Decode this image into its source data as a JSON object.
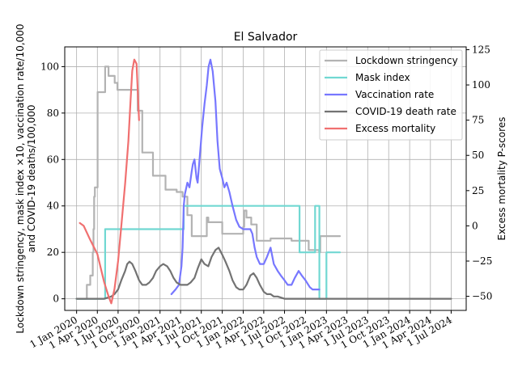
{
  "chart_data": {
    "type": "line",
    "title": "El Salvador",
    "ylabel_left": "Lockdown stringency, mask index ×10, vaccination rate/10,000\nand COVID-19 deaths/100,000",
    "ylabel_right": "Excess mortality P-scores",
    "ylim_left": [
      -5,
      108.5
    ],
    "ylim_right": [
      -60,
      127
    ],
    "yticks_left": [
      0,
      20,
      40,
      60,
      80,
      100
    ],
    "yticks_right": [
      -50,
      -25,
      0,
      25,
      50,
      75,
      100,
      125
    ],
    "x_range": [
      "2019-11-10",
      "2024-09-05"
    ],
    "x_ticks": [
      "2020-01-01",
      "2020-04-01",
      "2020-07-01",
      "2020-10-01",
      "2021-01-01",
      "2021-04-01",
      "2021-07-01",
      "2021-10-01",
      "2022-01-01",
      "2022-04-01",
      "2022-07-01",
      "2022-10-01",
      "2023-01-01",
      "2023-04-01",
      "2023-07-01",
      "2023-10-01",
      "2024-01-01",
      "2024-04-01",
      "2024-07-01"
    ],
    "x_tick_labels": [
      "1 Jan 2020",
      "1 Apr 2020",
      "1 Jul 2020",
      "1 Oct 2020",
      "1 Jan 2021",
      "1 Apr 2021",
      "1 Jul 2021",
      "1 Oct 2021",
      "1 Jan 2022",
      "1 Apr 2022",
      "1 Jul 2022",
      "1 Oct 2022",
      "1 Jan 2023",
      "1 Apr 2023",
      "1 Jul 2023",
      "1 Oct 2023",
      "1 Jan 2024",
      "1 Apr 2024",
      "1 Jul 2024"
    ],
    "grid": true,
    "legend_position": "top-right",
    "series": [
      {
        "name": "Lockdown stringency",
        "axis": "left",
        "color": "#b3b3b3",
        "step": true,
        "x": [
          "2020-01-01",
          "2020-02-15",
          "2020-03-01",
          "2020-03-12",
          "2020-03-15",
          "2020-03-18",
          "2020-03-21",
          "2020-04-02",
          "2020-05-05",
          "2020-05-20",
          "2020-06-16",
          "2020-06-28",
          "2020-07-10",
          "2020-08-24",
          "2020-09-25",
          "2020-10-15",
          "2020-12-01",
          "2020-12-20",
          "2021-01-25",
          "2021-02-05",
          "2021-03-15",
          "2021-04-10",
          "2021-05-01",
          "2021-05-20",
          "2021-06-01",
          "2021-07-25",
          "2021-08-01",
          "2021-08-15",
          "2021-10-01",
          "2021-11-01",
          "2022-01-01",
          "2022-01-05",
          "2022-01-15",
          "2022-02-05",
          "2022-03-01",
          "2022-05-01",
          "2022-08-01",
          "2022-09-10",
          "2022-10-15",
          "2022-11-30",
          "2022-12-05",
          "2023-03-01"
        ],
        "y": [
          0,
          6,
          10,
          20,
          30,
          44,
          48,
          89,
          100,
          96,
          93,
          90,
          90,
          90,
          81,
          63,
          53,
          53,
          47,
          47,
          46,
          44,
          36,
          27,
          27,
          35,
          33,
          33,
          28,
          28,
          31,
          38,
          35,
          32,
          25,
          26,
          25,
          25,
          21,
          20,
          27,
          27
        ]
      },
      {
        "name": "Mask index",
        "axis": "left",
        "color": "#71d8d2",
        "step": true,
        "x": [
          "2020-01-01",
          "2020-04-15",
          "2020-05-05",
          "2021-04-15",
          "2022-07-08",
          "2022-08-01",
          "2022-08-25",
          "2022-09-05",
          "2022-10-01",
          "2022-11-12",
          "2022-12-01",
          "2023-01-01",
          "2023-01-15",
          "2023-02-15",
          "2023-03-01"
        ],
        "y": [
          0,
          0,
          30,
          40,
          40,
          40,
          40,
          20,
          20,
          40,
          0,
          20,
          20,
          20,
          20
        ]
      },
      {
        "name": "Vaccination rate",
        "axis": "left",
        "color": "#7777ff",
        "step": false,
        "x": [
          "2021-02-20",
          "2021-03-10",
          "2021-03-25",
          "2021-04-05",
          "2021-04-10",
          "2021-04-15",
          "2021-04-20",
          "2021-05-01",
          "2021-05-10",
          "2021-05-20",
          "2021-05-25",
          "2021-06-01",
          "2021-06-10",
          "2021-06-15",
          "2021-06-25",
          "2021-07-05",
          "2021-07-15",
          "2021-07-25",
          "2021-08-02",
          "2021-08-10",
          "2021-08-20",
          "2021-09-01",
          "2021-09-10",
          "2021-09-20",
          "2021-10-01",
          "2021-10-10",
          "2021-10-20",
          "2021-11-01",
          "2021-11-15",
          "2021-12-01",
          "2021-12-15",
          "2022-01-01",
          "2022-01-15",
          "2022-02-01",
          "2022-02-10",
          "2022-02-20",
          "2022-03-01",
          "2022-03-15",
          "2022-04-01",
          "2022-04-15",
          "2022-05-01",
          "2022-05-15",
          "2022-06-01",
          "2022-06-15",
          "2022-07-01",
          "2022-07-15",
          "2022-08-01",
          "2022-08-15",
          "2022-09-01",
          "2022-09-15",
          "2022-10-01",
          "2022-10-20",
          "2022-11-01",
          "2022-11-15",
          "2022-12-01"
        ],
        "y": [
          2,
          4,
          6,
          14,
          22,
          40,
          45,
          50,
          48,
          55,
          58,
          60,
          52,
          50,
          62,
          74,
          84,
          92,
          100,
          103,
          98,
          85,
          68,
          56,
          52,
          48,
          50,
          46,
          40,
          34,
          31,
          30,
          30,
          30,
          28,
          22,
          18,
          15,
          15,
          18,
          22,
          15,
          12,
          10,
          8,
          6,
          6,
          9,
          12,
          10,
          8,
          5,
          4,
          4,
          4
        ]
      },
      {
        "name": "COVID-19 death rate",
        "axis": "left",
        "color": "#737373",
        "step": false,
        "x": [
          "2020-01-01",
          "2020-04-01",
          "2020-05-01",
          "2020-06-01",
          "2020-06-15",
          "2020-07-01",
          "2020-07-15",
          "2020-08-01",
          "2020-08-10",
          "2020-08-20",
          "2020-09-01",
          "2020-09-15",
          "2020-10-01",
          "2020-10-15",
          "2020-11-01",
          "2020-11-15",
          "2020-12-01",
          "2020-12-15",
          "2021-01-01",
          "2021-01-15",
          "2021-02-01",
          "2021-02-15",
          "2021-03-01",
          "2021-03-15",
          "2021-04-01",
          "2021-04-15",
          "2021-05-01",
          "2021-05-15",
          "2021-06-01",
          "2021-06-15",
          "2021-07-01",
          "2021-07-15",
          "2021-08-01",
          "2021-08-15",
          "2021-09-01",
          "2021-09-15",
          "2021-10-01",
          "2021-10-15",
          "2021-11-01",
          "2021-11-15",
          "2021-12-01",
          "2021-12-15",
          "2022-01-01",
          "2022-01-15",
          "2022-02-01",
          "2022-02-15",
          "2022-03-01",
          "2022-03-15",
          "2022-04-01",
          "2022-04-15",
          "2022-05-01",
          "2022-05-15",
          "2022-06-01",
          "2022-07-01",
          "2022-08-01",
          "2022-09-01",
          "2022-10-01",
          "2022-11-01",
          "2022-12-01",
          "2023-01-01",
          "2023-06-01",
          "2024-01-01",
          "2024-07-01"
        ],
        "y": [
          0,
          0,
          0,
          1,
          2,
          4,
          8,
          12,
          15,
          16,
          15,
          12,
          8,
          6,
          6,
          7,
          9,
          12,
          14,
          15,
          14,
          12,
          9,
          7,
          6,
          6,
          6,
          7,
          9,
          13,
          17,
          15,
          14,
          18,
          21,
          22,
          19,
          16,
          12,
          8,
          5,
          4,
          4,
          6,
          10,
          11,
          9,
          6,
          3,
          2,
          2,
          1,
          1,
          0,
          0,
          0,
          0,
          0,
          0,
          0,
          0,
          0,
          0
        ]
      },
      {
        "name": "Excess mortality",
        "axis": "right",
        "color": "#f07070",
        "step": false,
        "x": [
          "2020-01-15",
          "2020-02-01",
          "2020-03-01",
          "2020-04-01",
          "2020-05-01",
          "2020-05-20",
          "2020-06-01",
          "2020-06-15",
          "2020-07-01",
          "2020-07-15",
          "2020-08-01",
          "2020-08-15",
          "2020-08-25",
          "2020-09-01",
          "2020-09-10",
          "2020-09-20",
          "2020-10-01"
        ],
        "y": [
          2,
          0,
          -10,
          -20,
          -40,
          -50,
          -55,
          -45,
          -25,
          0,
          30,
          60,
          90,
          110,
          118,
          115,
          75
        ]
      }
    ]
  }
}
